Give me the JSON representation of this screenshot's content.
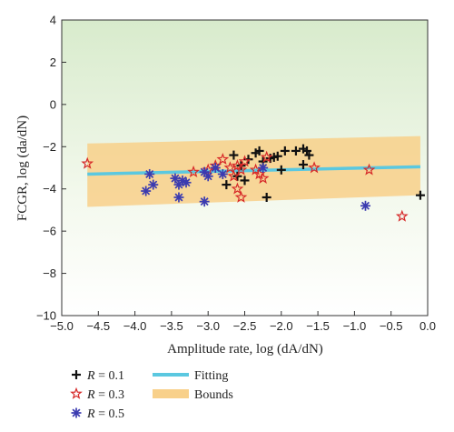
{
  "chart_data": {
    "type": "scatter",
    "xlabel": "Amplitude rate, log (dA/dN)",
    "ylabel": "FCGR, log (da/dN)",
    "xlim": [
      -5.0,
      0.0
    ],
    "ylim": [
      -10,
      4
    ],
    "xticks": [
      "−5.0",
      "−4.5",
      "−4.0",
      "−3.5",
      "−3.0",
      "−2.5",
      "−2.0",
      "−1.5",
      "−1.0",
      "−0.5",
      "0.0"
    ],
    "yticks": [
      "−10",
      "−8",
      "−6",
      "−4",
      "−2",
      "0",
      "2",
      "4"
    ],
    "fitting": {
      "name": "Fitting",
      "color": "#5bc8e0",
      "x": [
        -4.65,
        -0.1
      ],
      "y": [
        -3.3,
        -2.95
      ]
    },
    "bounds": {
      "name": "Bounds",
      "color": "#f8d08a",
      "x": [
        -4.65,
        -0.1
      ],
      "upper": [
        -1.85,
        -1.5
      ],
      "lower": [
        -4.85,
        -4.3
      ]
    },
    "series": [
      {
        "name": "R = 0.1",
        "r_value": "0.1",
        "marker": "plus",
        "color": "#111111",
        "x": [
          -2.65,
          -2.55,
          -2.45,
          -2.35,
          -2.3,
          -2.25,
          -2.15,
          -2.1,
          -2.05,
          -1.95,
          -1.8,
          -1.7,
          -1.65,
          -1.62,
          -2.6,
          -2.75,
          -2.5,
          -2.2,
          -2.0,
          -1.7,
          -0.1
        ],
        "y": [
          -2.4,
          -2.9,
          -2.6,
          -2.3,
          -2.2,
          -2.7,
          -2.55,
          -2.5,
          -2.45,
          -2.2,
          -2.2,
          -2.1,
          -2.2,
          -2.4,
          -3.4,
          -3.8,
          -3.6,
          -4.4,
          -3.1,
          -2.85,
          -4.3
        ]
      },
      {
        "name": "R = 0.3",
        "r_value": "0.3",
        "marker": "star",
        "color": "#d62828",
        "x": [
          -4.65,
          -3.2,
          -3.0,
          -2.9,
          -2.8,
          -2.7,
          -2.65,
          -2.6,
          -2.55,
          -2.5,
          -2.35,
          -2.3,
          -2.25,
          -2.2,
          -1.55,
          -0.8,
          -0.35,
          -2.6,
          -2.55
        ],
        "y": [
          -2.8,
          -3.2,
          -3.1,
          -2.9,
          -2.6,
          -3.0,
          -3.4,
          -2.9,
          -3.1,
          -2.7,
          -3.1,
          -3.3,
          -3.5,
          -2.5,
          -3.0,
          -3.1,
          -5.3,
          -4.0,
          -4.4
        ]
      },
      {
        "name": "R = 0.5",
        "r_value": "0.5",
        "marker": "asterisk",
        "color": "#3b3bb0",
        "x": [
          -3.85,
          -3.8,
          -3.75,
          -3.45,
          -3.4,
          -3.35,
          -3.3,
          -3.05,
          -3.0,
          -2.9,
          -2.8,
          -2.25,
          -0.85,
          -3.4,
          -3.05
        ],
        "y": [
          -4.1,
          -3.3,
          -3.8,
          -3.5,
          -3.8,
          -3.6,
          -3.7,
          -3.2,
          -3.4,
          -3.0,
          -3.3,
          -3.0,
          -4.8,
          -4.4,
          -4.6
        ]
      }
    ],
    "legend": {
      "placement": "bottom",
      "items": [
        {
          "key": "R",
          "suffix": " = 0.1",
          "marker": "plus",
          "color": "#111111"
        },
        {
          "key": "R",
          "suffix": " = 0.3",
          "marker": "star",
          "color": "#d62828"
        },
        {
          "key": "R",
          "suffix": " = 0.5",
          "marker": "asterisk",
          "color": "#3b3bb0"
        },
        {
          "label": "Fitting",
          "marker": "line",
          "color": "#5bc8e0"
        },
        {
          "label": "Bounds",
          "marker": "band",
          "color": "#f8d08a"
        }
      ]
    },
    "background": {
      "top_color": "#d8ebcc",
      "bottom_color": "#ffffff"
    },
    "grid": false
  }
}
